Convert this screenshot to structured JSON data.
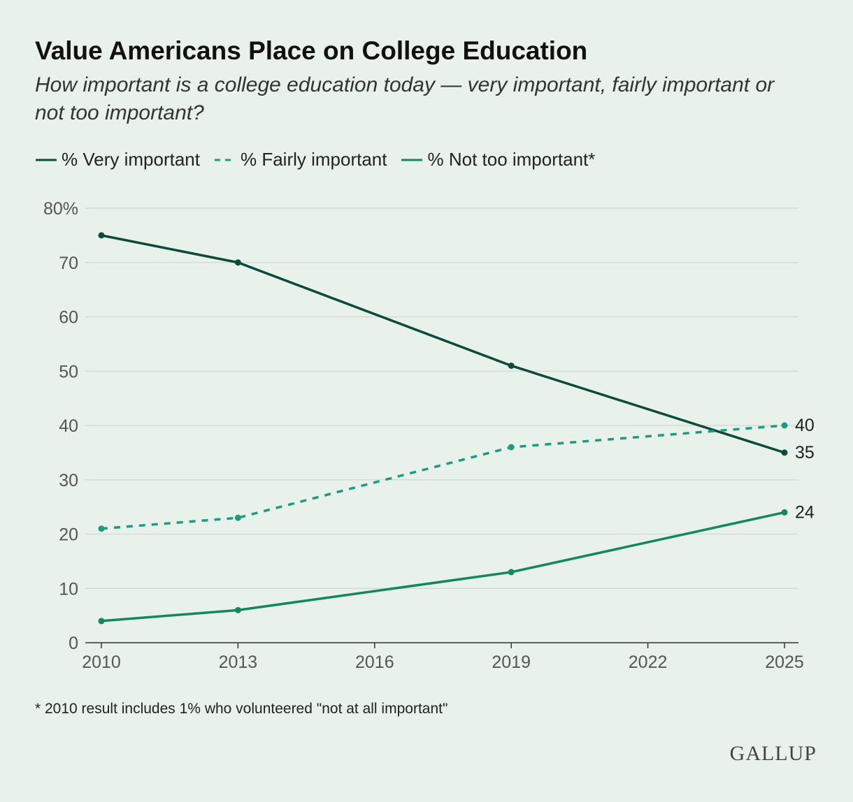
{
  "title": "Value Americans Place on College Education",
  "subtitle": "How important is a college education today — very important, fairly important or not too important?",
  "legend": [
    {
      "label": "% Very important",
      "color": "#0d4a3e",
      "dash": "solid"
    },
    {
      "label": "% Fairly important",
      "color": "#1e9a84",
      "dash": "dashed"
    },
    {
      "label": "% Not too important*",
      "color": "#14885a",
      "dash": "solid"
    }
  ],
  "chart_data": {
    "type": "line",
    "title": "Value Americans Place on College Education",
    "ylim": [
      0,
      80
    ],
    "xlim": [
      2010,
      2025
    ],
    "yticks": [
      "0",
      "10",
      "20",
      "30",
      "40",
      "50",
      "60",
      "70",
      "80%"
    ],
    "ytick_values": [
      0,
      10,
      20,
      30,
      40,
      50,
      60,
      70,
      80
    ],
    "xticks": [
      2010,
      2013,
      2016,
      2019,
      2022,
      2025
    ],
    "grid": true,
    "legend_position": "top-left",
    "series": [
      {
        "name": "% Very important",
        "color": "#0d4a3e",
        "dash": "solid",
        "x": [
          2010,
          2013,
          2019,
          2025
        ],
        "values": [
          75,
          70,
          51,
          35
        ],
        "end_label": "35"
      },
      {
        "name": "% Fairly important",
        "color": "#1e9a84",
        "dash": "dashed",
        "x": [
          2010,
          2013,
          2019,
          2025
        ],
        "values": [
          21,
          23,
          36,
          40
        ],
        "end_label": "40"
      },
      {
        "name": "% Not too important*",
        "color": "#14885a",
        "dash": "solid",
        "x": [
          2010,
          2013,
          2019,
          2025
        ],
        "values": [
          4,
          6,
          13,
          24
        ],
        "end_label": "24"
      }
    ]
  },
  "footnote": "* 2010 result includes 1% who volunteered \"not at all important\"",
  "brand": "GALLUP",
  "colors": {
    "background": "#e8f1ea",
    "grid": "#cfd8d1",
    "axis": "#333333",
    "tick_text": "#555555"
  }
}
